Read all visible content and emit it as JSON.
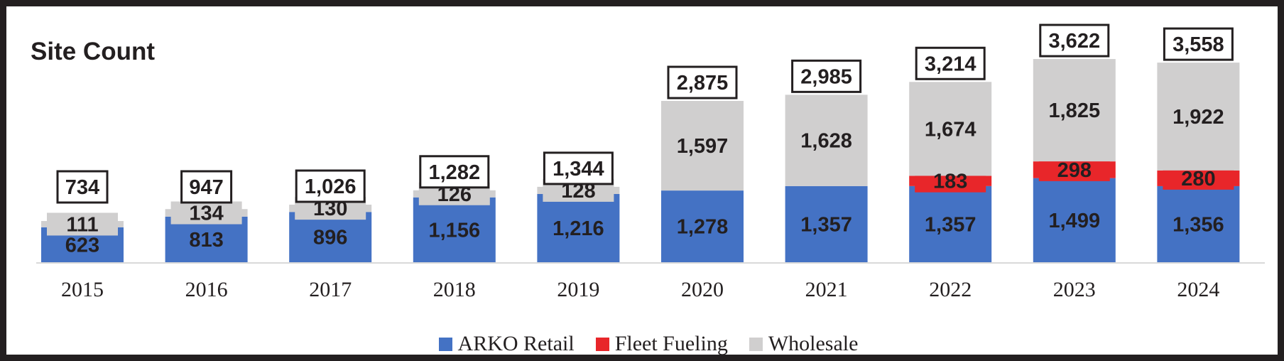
{
  "chart_data": {
    "type": "bar",
    "stacked": true,
    "title": "Site Count",
    "categories": [
      "2015",
      "2016",
      "2017",
      "2018",
      "2019",
      "2020",
      "2021",
      "2022",
      "2023",
      "2024"
    ],
    "series": [
      {
        "name": "ARKO Retail",
        "color": "#4472c4",
        "values": [
          623,
          813,
          896,
          1156,
          1216,
          1278,
          1357,
          1357,
          1499,
          1356
        ],
        "labels": [
          "623",
          "813",
          "896",
          "1,156",
          "1,216",
          "1,278",
          "1,357",
          "1,357",
          "1,499",
          "1,356"
        ]
      },
      {
        "name": "Fleet Fueling",
        "color": "#e8262a",
        "values": [
          0,
          0,
          0,
          0,
          0,
          0,
          0,
          183,
          298,
          280
        ],
        "labels": [
          "",
          "",
          "",
          "",
          "",
          "",
          "",
          "183",
          "298",
          "280"
        ]
      },
      {
        "name": "Wholesale",
        "color": "#d0cfcf",
        "values": [
          111,
          134,
          130,
          126,
          128,
          1597,
          1628,
          1674,
          1825,
          1922
        ],
        "labels": [
          "111",
          "134",
          "130",
          "126",
          "128",
          "1,597",
          "1,628",
          "1,674",
          "1,825",
          "1,922"
        ]
      }
    ],
    "totals": [
      734,
      947,
      1026,
      1282,
      1344,
      2875,
      2985,
      3214,
      3622,
      3558
    ],
    "total_labels": [
      "734",
      "947",
      "1,026",
      "1,282",
      "1,344",
      "2,875",
      "2,985",
      "3,214",
      "3,622",
      "3,558"
    ],
    "ylim": [
      0,
      3800
    ],
    "legend_position": "bottom",
    "xlabel": "",
    "ylabel": ""
  }
}
